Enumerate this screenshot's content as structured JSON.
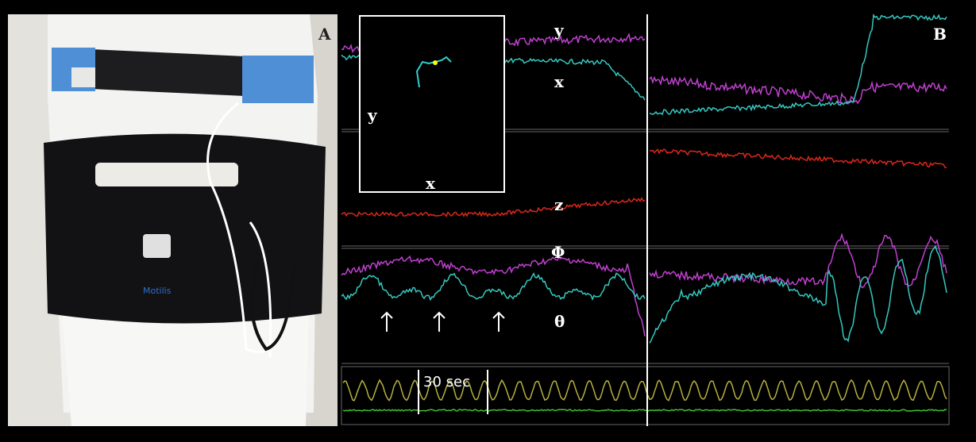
{
  "panel_a": {
    "label": "A"
  },
  "panel_b": {
    "label": "B",
    "inset": {
      "y_label": "y",
      "x_label": "x"
    },
    "trace_labels": {
      "y": "y",
      "x": "x",
      "z": "z",
      "phi": "Φ",
      "theta": "θ"
    },
    "scale_bar": "30 sec"
  }
}
